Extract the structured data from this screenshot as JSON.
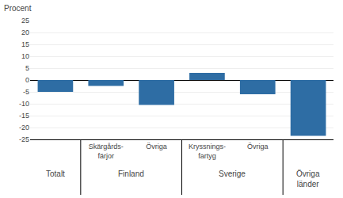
{
  "chart_data": {
    "type": "bar",
    "ylabel": "Procent",
    "categories": [
      [
        "Totalt",
        null
      ],
      [
        "Finland",
        "Skärgårds-\nfärjor"
      ],
      [
        "Finland",
        "Övriga"
      ],
      [
        "Sverige",
        "Kryssnings-\nfartyg"
      ],
      [
        "Sverige",
        "Övriga"
      ],
      [
        "Övriga\nländer",
        null
      ]
    ],
    "values": [
      -5.0,
      -2.5,
      -10.5,
      3.0,
      -6.0,
      -23.5
    ],
    "color": "#2E6DA4",
    "ylim": [
      -25,
      25
    ],
    "yticks": [
      -25,
      -20,
      -15,
      -10,
      -5,
      0,
      5,
      10,
      15,
      20,
      25
    ],
    "grid": true
  }
}
